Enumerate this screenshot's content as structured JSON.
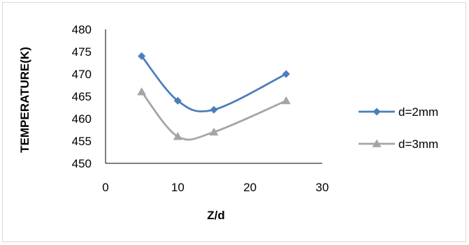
{
  "chart_data": {
    "type": "line",
    "title": "",
    "xlabel": "Z/d",
    "ylabel": "TEMPERATURE(K)",
    "xlim": [
      0,
      30
    ],
    "ylim": [
      450,
      480
    ],
    "x_ticks": [
      0,
      10,
      20,
      30
    ],
    "y_ticks": [
      450,
      455,
      460,
      465,
      470,
      475,
      480
    ],
    "grid": false,
    "legend_position": "right",
    "series": [
      {
        "name": "d=2mm",
        "color": "#4a7ebb",
        "marker": "diamond",
        "x": [
          5,
          10,
          15,
          25
        ],
        "values": [
          474,
          464,
          462,
          470
        ]
      },
      {
        "name": "d=3mm",
        "color": "#a5a5a5",
        "marker": "triangle",
        "x": [
          5,
          10,
          15,
          25
        ],
        "values": [
          466,
          456,
          457,
          464
        ]
      }
    ]
  }
}
